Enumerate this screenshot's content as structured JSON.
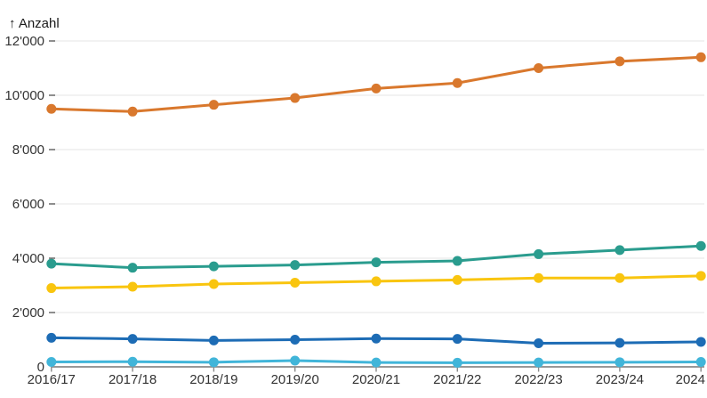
{
  "chart_data": {
    "type": "line",
    "title": "",
    "xlabel": "",
    "ylabel": "Anzahl",
    "axis_title_display": "↑ Anzahl",
    "number_format": "swiss-apostrophe",
    "grid": true,
    "legend_position": "none",
    "ylim": [
      0,
      12000
    ],
    "categories": [
      "2016/17",
      "2017/18",
      "2018/19",
      "2019/20",
      "2020/21",
      "2021/22",
      "2022/23",
      "2023/24",
      "2024"
    ],
    "y_ticks": [
      0,
      2000,
      4000,
      6000,
      8000,
      10000,
      12000
    ],
    "y_tick_labels": [
      "0",
      "2'000",
      "4'000",
      "6'000",
      "8'000",
      "10'000",
      "12'000"
    ],
    "series": [
      {
        "name": "series-orange",
        "color": "#d9782d",
        "values": [
          9500,
          9400,
          9650,
          9900,
          10250,
          10450,
          11000,
          11250,
          11400
        ]
      },
      {
        "name": "series-teal",
        "color": "#2a9c8e",
        "values": [
          3800,
          3650,
          3700,
          3750,
          3850,
          3900,
          4150,
          4300,
          4450
        ]
      },
      {
        "name": "series-yellow",
        "color": "#f9c50f",
        "values": [
          2900,
          2950,
          3050,
          3100,
          3150,
          3200,
          3270,
          3270,
          3350
        ]
      },
      {
        "name": "series-blue",
        "color": "#1d6cb5",
        "values": [
          1070,
          1030,
          970,
          1000,
          1040,
          1030,
          870,
          880,
          920
        ]
      },
      {
        "name": "series-lightblue",
        "color": "#41b5d9",
        "values": [
          180,
          190,
          170,
          230,
          160,
          150,
          160,
          170,
          180
        ]
      }
    ],
    "colors": {
      "grid_line": "#ededed",
      "axis_line": "#8a8a8a",
      "tick_mark": "#555555",
      "tick_text": "#333333"
    }
  }
}
